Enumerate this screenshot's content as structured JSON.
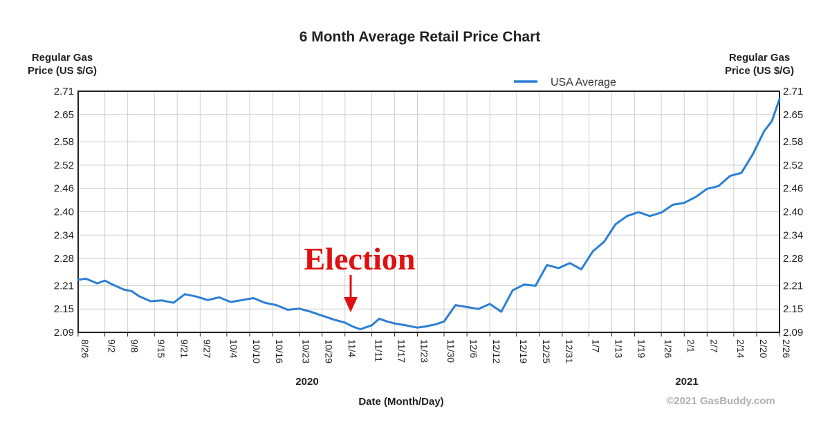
{
  "chart_data": {
    "type": "line",
    "title": "6 Month Average Retail Price Chart",
    "ylabel_left": [
      "Regular Gas",
      "Price (US $/G)"
    ],
    "ylabel_right": [
      "Regular Gas",
      "Price (US $/G)"
    ],
    "xlabel": "Date (Month/Day)",
    "ylim": [
      2.09,
      2.71
    ],
    "y_ticks": [
      "2.71",
      "2.65",
      "2.58",
      "2.52",
      "2.46",
      "2.40",
      "2.34",
      "2.28",
      "2.21",
      "2.15",
      "2.09"
    ],
    "x_ticks": [
      "8/26",
      "9/2",
      "9/8",
      "9/15",
      "9/21",
      "9/27",
      "10/4",
      "10/10",
      "10/16",
      "10/23",
      "10/29",
      "11/4",
      "11/11",
      "11/17",
      "11/23",
      "11/30",
      "12/6",
      "12/12",
      "12/19",
      "12/25",
      "12/31",
      "1/7",
      "1/13",
      "1/19",
      "1/26",
      "2/1",
      "2/7",
      "2/14",
      "2/20",
      "2/26"
    ],
    "year_labels": [
      "2020",
      "2021"
    ],
    "grid": true,
    "legend_position": "top-right",
    "series": [
      {
        "name": "USA Average",
        "color": "#2b7fd4",
        "x": [
          "8/26",
          "8/28",
          "8/31",
          "9/2",
          "9/4",
          "9/7",
          "9/9",
          "9/11",
          "9/14",
          "9/17",
          "9/20",
          "9/23",
          "9/26",
          "9/29",
          "10/2",
          "10/5",
          "10/8",
          "10/11",
          "10/14",
          "10/17",
          "10/20",
          "10/23",
          "10/26",
          "10/29",
          "11/1",
          "11/4",
          "11/6",
          "11/8",
          "11/11",
          "11/13",
          "11/15",
          "11/17",
          "11/20",
          "11/23",
          "11/25",
          "11/28",
          "11/30",
          "12/3",
          "12/6",
          "12/9",
          "12/12",
          "12/15",
          "12/18",
          "12/21",
          "12/24",
          "12/27",
          "12/30",
          "1/2",
          "1/5",
          "1/8",
          "1/11",
          "1/14",
          "1/17",
          "1/20",
          "1/23",
          "1/26",
          "1/29",
          "2/1",
          "2/4",
          "2/7",
          "2/10",
          "2/13",
          "2/16",
          "2/19",
          "2/22",
          "2/24",
          "2/26"
        ],
        "values": [
          2.225,
          2.228,
          2.216,
          2.223,
          2.213,
          2.2,
          2.196,
          2.183,
          2.17,
          2.172,
          2.166,
          2.188,
          2.182,
          2.173,
          2.18,
          2.168,
          2.173,
          2.178,
          2.166,
          2.16,
          2.148,
          2.151,
          2.143,
          2.133,
          2.123,
          2.115,
          2.105,
          2.098,
          2.108,
          2.125,
          2.118,
          2.113,
          2.108,
          2.102,
          2.105,
          2.111,
          2.118,
          2.16,
          2.155,
          2.15,
          2.163,
          2.143,
          2.198,
          2.213,
          2.21,
          2.263,
          2.255,
          2.268,
          2.252,
          2.298,
          2.323,
          2.368,
          2.389,
          2.399,
          2.389,
          2.398,
          2.418,
          2.423,
          2.438,
          2.459,
          2.466,
          2.492,
          2.5,
          2.548,
          2.608,
          2.633,
          2.69
        ]
      }
    ],
    "annotation": {
      "text": "Election",
      "target": "11/6",
      "color": "#e01010"
    },
    "credit": "©2021 GasBuddy.com"
  }
}
